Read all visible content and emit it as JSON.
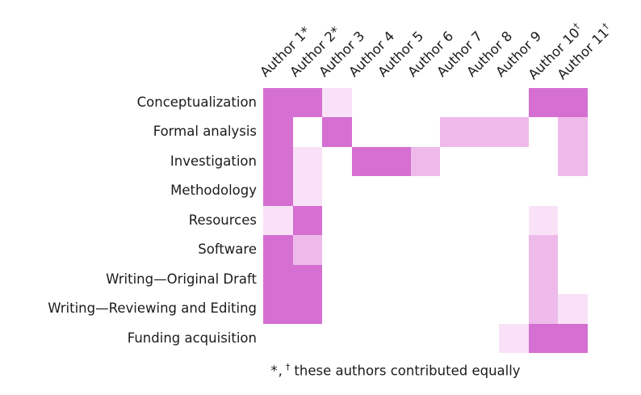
{
  "chart_data": {
    "type": "heatmap",
    "description": "Author contribution matrix; cell shading intensity encodes contribution level (0=none, 1=light, 2=medium, 3=dark)",
    "columns": [
      {
        "label": "Author 1",
        "mark": "*",
        "mark_sup": false
      },
      {
        "label": "Author 2",
        "mark": "*",
        "mark_sup": false
      },
      {
        "label": "Author 3",
        "mark": "",
        "mark_sup": false
      },
      {
        "label": "Author 4",
        "mark": "",
        "mark_sup": false
      },
      {
        "label": "Author 5",
        "mark": "",
        "mark_sup": false
      },
      {
        "label": "Author 6",
        "mark": "",
        "mark_sup": false
      },
      {
        "label": "Author 7",
        "mark": "",
        "mark_sup": false
      },
      {
        "label": "Author 8",
        "mark": "",
        "mark_sup": false
      },
      {
        "label": "Author 9",
        "mark": "",
        "mark_sup": false
      },
      {
        "label": "Author 10",
        "mark": "†",
        "mark_sup": true
      },
      {
        "label": "Author 11",
        "mark": "†",
        "mark_sup": true
      }
    ],
    "rows": [
      "Conceptualization",
      "Formal analysis",
      "Investigation",
      "Methodology",
      "Resources",
      "Software",
      "Writing—Original Draft",
      "Writing—Reviewing and Editing",
      "Funding acquisition"
    ],
    "values": [
      [
        3,
        3,
        1,
        0,
        0,
        0,
        0,
        0,
        0,
        3,
        3
      ],
      [
        3,
        0,
        3,
        0,
        0,
        0,
        2,
        2,
        2,
        0,
        2
      ],
      [
        3,
        1,
        0,
        3,
        3,
        2,
        0,
        0,
        0,
        0,
        2
      ],
      [
        3,
        1,
        0,
        0,
        0,
        0,
        0,
        0,
        0,
        0,
        0
      ],
      [
        1,
        3,
        0,
        0,
        0,
        0,
        0,
        0,
        0,
        1,
        0
      ],
      [
        3,
        2,
        0,
        0,
        0,
        0,
        0,
        0,
        0,
        2,
        0
      ],
      [
        3,
        3,
        0,
        0,
        0,
        0,
        0,
        0,
        0,
        2,
        0
      ],
      [
        3,
        3,
        0,
        0,
        0,
        0,
        0,
        0,
        0,
        2,
        1
      ],
      [
        0,
        0,
        0,
        0,
        0,
        0,
        0,
        0,
        1,
        3,
        3
      ]
    ],
    "level_colors": [
      "#ffffff",
      "#f9e2f7",
      "#eebaea",
      "#d56fd2"
    ],
    "level_names": [
      "none",
      "light",
      "medium",
      "dark"
    ],
    "footnote": "*, † these authors contributed equally"
  },
  "footnote": {
    "star": "*,",
    "dagger": "†",
    "text": "these authors contributed equally"
  }
}
